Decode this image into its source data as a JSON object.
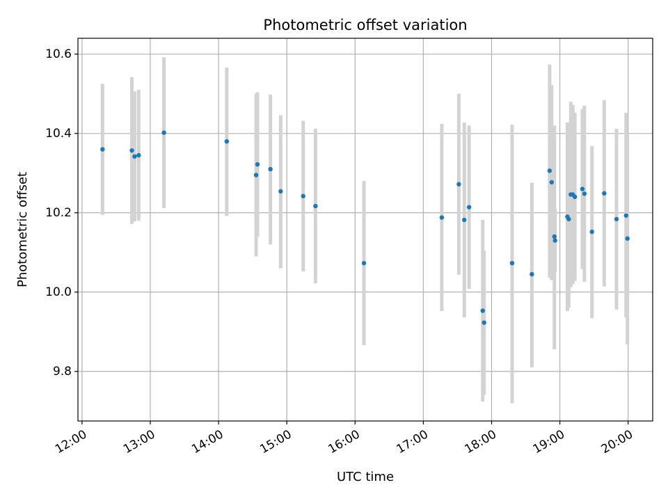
{
  "chart_data": {
    "type": "scatter",
    "title": "Photometric offset variation",
    "xlabel": "UTC time",
    "ylabel": "Photometric offset",
    "x_unit": "hours UTC",
    "xlim": [
      11.94,
      20.36
    ],
    "ylim": [
      9.675,
      10.64
    ],
    "x_ticks": [
      {
        "value": 12,
        "label": "12:00"
      },
      {
        "value": 13,
        "label": "13:00"
      },
      {
        "value": 14,
        "label": "14:00"
      },
      {
        "value": 15,
        "label": "15:00"
      },
      {
        "value": 16,
        "label": "16:00"
      },
      {
        "value": 17,
        "label": "17:00"
      },
      {
        "value": 18,
        "label": "18:00"
      },
      {
        "value": 19,
        "label": "19:00"
      },
      {
        "value": 20,
        "label": "20:00"
      }
    ],
    "y_ticks": [
      {
        "value": 9.8,
        "label": "9.8"
      },
      {
        "value": 10.0,
        "label": "10.0"
      },
      {
        "value": 10.2,
        "label": "10.2"
      },
      {
        "value": 10.4,
        "label": "10.4"
      },
      {
        "value": 10.6,
        "label": "10.6"
      }
    ],
    "grid": true,
    "marker_color": "#1f77b4",
    "errorbar_color": "#d3d3d3",
    "points": [
      {
        "x": 12.3,
        "y": 10.36,
        "lo": 10.195,
        "hi": 10.525
      },
      {
        "x": 12.73,
        "y": 10.357,
        "lo": 10.172,
        "hi": 10.542
      },
      {
        "x": 12.77,
        "y": 10.342,
        "lo": 10.178,
        "hi": 10.506
      },
      {
        "x": 12.83,
        "y": 10.345,
        "lo": 10.18,
        "hi": 10.51
      },
      {
        "x": 13.2,
        "y": 10.402,
        "lo": 10.212,
        "hi": 10.592
      },
      {
        "x": 14.12,
        "y": 10.38,
        "lo": 10.192,
        "hi": 10.566
      },
      {
        "x": 14.55,
        "y": 10.295,
        "lo": 10.09,
        "hi": 10.5
      },
      {
        "x": 14.57,
        "y": 10.322,
        "lo": 10.14,
        "hi": 10.504
      },
      {
        "x": 14.76,
        "y": 10.31,
        "lo": 10.12,
        "hi": 10.498
      },
      {
        "x": 14.91,
        "y": 10.254,
        "lo": 10.06,
        "hi": 10.446
      },
      {
        "x": 15.24,
        "y": 10.242,
        "lo": 10.052,
        "hi": 10.432
      },
      {
        "x": 15.42,
        "y": 10.217,
        "lo": 10.022,
        "hi": 10.412
      },
      {
        "x": 16.13,
        "y": 10.073,
        "lo": 9.866,
        "hi": 10.28
      },
      {
        "x": 17.27,
        "y": 10.188,
        "lo": 9.952,
        "hi": 10.424
      },
      {
        "x": 17.52,
        "y": 10.272,
        "lo": 10.044,
        "hi": 10.5
      },
      {
        "x": 17.6,
        "y": 10.182,
        "lo": 9.936,
        "hi": 10.428
      },
      {
        "x": 17.67,
        "y": 10.214,
        "lo": 10.008,
        "hi": 10.42
      },
      {
        "x": 17.87,
        "y": 9.953,
        "lo": 9.724,
        "hi": 10.182
      },
      {
        "x": 17.89,
        "y": 9.923,
        "lo": 9.742,
        "hi": 10.104
      },
      {
        "x": 18.3,
        "y": 10.073,
        "lo": 9.72,
        "hi": 10.422
      },
      {
        "x": 18.59,
        "y": 10.045,
        "lo": 9.81,
        "hi": 10.276
      },
      {
        "x": 18.85,
        "y": 10.306,
        "lo": 10.036,
        "hi": 10.574
      },
      {
        "x": 18.88,
        "y": 10.277,
        "lo": 10.03,
        "hi": 10.522
      },
      {
        "x": 18.92,
        "y": 10.14,
        "lo": 9.856,
        "hi": 10.42
      },
      {
        "x": 18.93,
        "y": 10.13,
        "lo": 10.05,
        "hi": 10.21
      },
      {
        "x": 19.11,
        "y": 10.19,
        "lo": 9.952,
        "hi": 10.428
      },
      {
        "x": 19.13,
        "y": 10.184,
        "lo": 9.96,
        "hi": 10.408
      },
      {
        "x": 19.16,
        "y": 10.246,
        "lo": 10.012,
        "hi": 10.48
      },
      {
        "x": 19.19,
        "y": 10.246,
        "lo": 10.02,
        "hi": 10.472
      },
      {
        "x": 19.22,
        "y": 10.24,
        "lo": 10.028,
        "hi": 10.452
      },
      {
        "x": 19.33,
        "y": 10.26,
        "lo": 10.058,
        "hi": 10.462
      },
      {
        "x": 19.36,
        "y": 10.248,
        "lo": 10.026,
        "hi": 10.47
      },
      {
        "x": 19.47,
        "y": 10.152,
        "lo": 9.934,
        "hi": 10.368
      },
      {
        "x": 19.65,
        "y": 10.249,
        "lo": 10.014,
        "hi": 10.484
      },
      {
        "x": 19.83,
        "y": 10.184,
        "lo": 9.956,
        "hi": 10.412
      },
      {
        "x": 19.97,
        "y": 10.193,
        "lo": 9.936,
        "hi": 10.452
      },
      {
        "x": 19.99,
        "y": 10.135,
        "lo": 9.868,
        "hi": 10.4
      }
    ]
  }
}
